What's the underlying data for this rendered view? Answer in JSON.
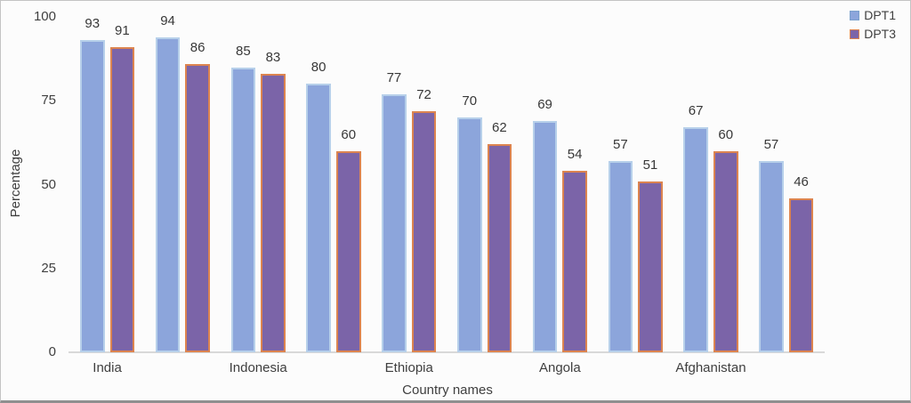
{
  "chart_data": {
    "type": "bar",
    "title": "",
    "xlabel": "Country names",
    "ylabel": "Percentage",
    "ylim": [
      0,
      100
    ],
    "yticks": [
      100,
      75,
      50,
      25,
      0
    ],
    "x_tick_labels": [
      "India",
      "Indonesia",
      "Ethiopia",
      "Angola",
      "Afghanistan"
    ],
    "labeled_group_indices": [
      0,
      2,
      4,
      6,
      8
    ],
    "num_groups": 10,
    "grid": false,
    "legend_position": "top-right",
    "series": [
      {
        "name": "DPT1",
        "fill": "#8CA5DB",
        "border": "#B7D0EA",
        "values": [
          93,
          94,
          85,
          80,
          77,
          70,
          69,
          57,
          67,
          57
        ]
      },
      {
        "name": "DPT3",
        "fill": "#7B64A8",
        "border": "#DC8450",
        "values": [
          91,
          86,
          83,
          60,
          72,
          62,
          54,
          51,
          60,
          46
        ]
      }
    ]
  },
  "colors": {
    "text": "#3f3f3f",
    "axis_line": "#d9d9d9",
    "background": "#fcfcfc"
  }
}
